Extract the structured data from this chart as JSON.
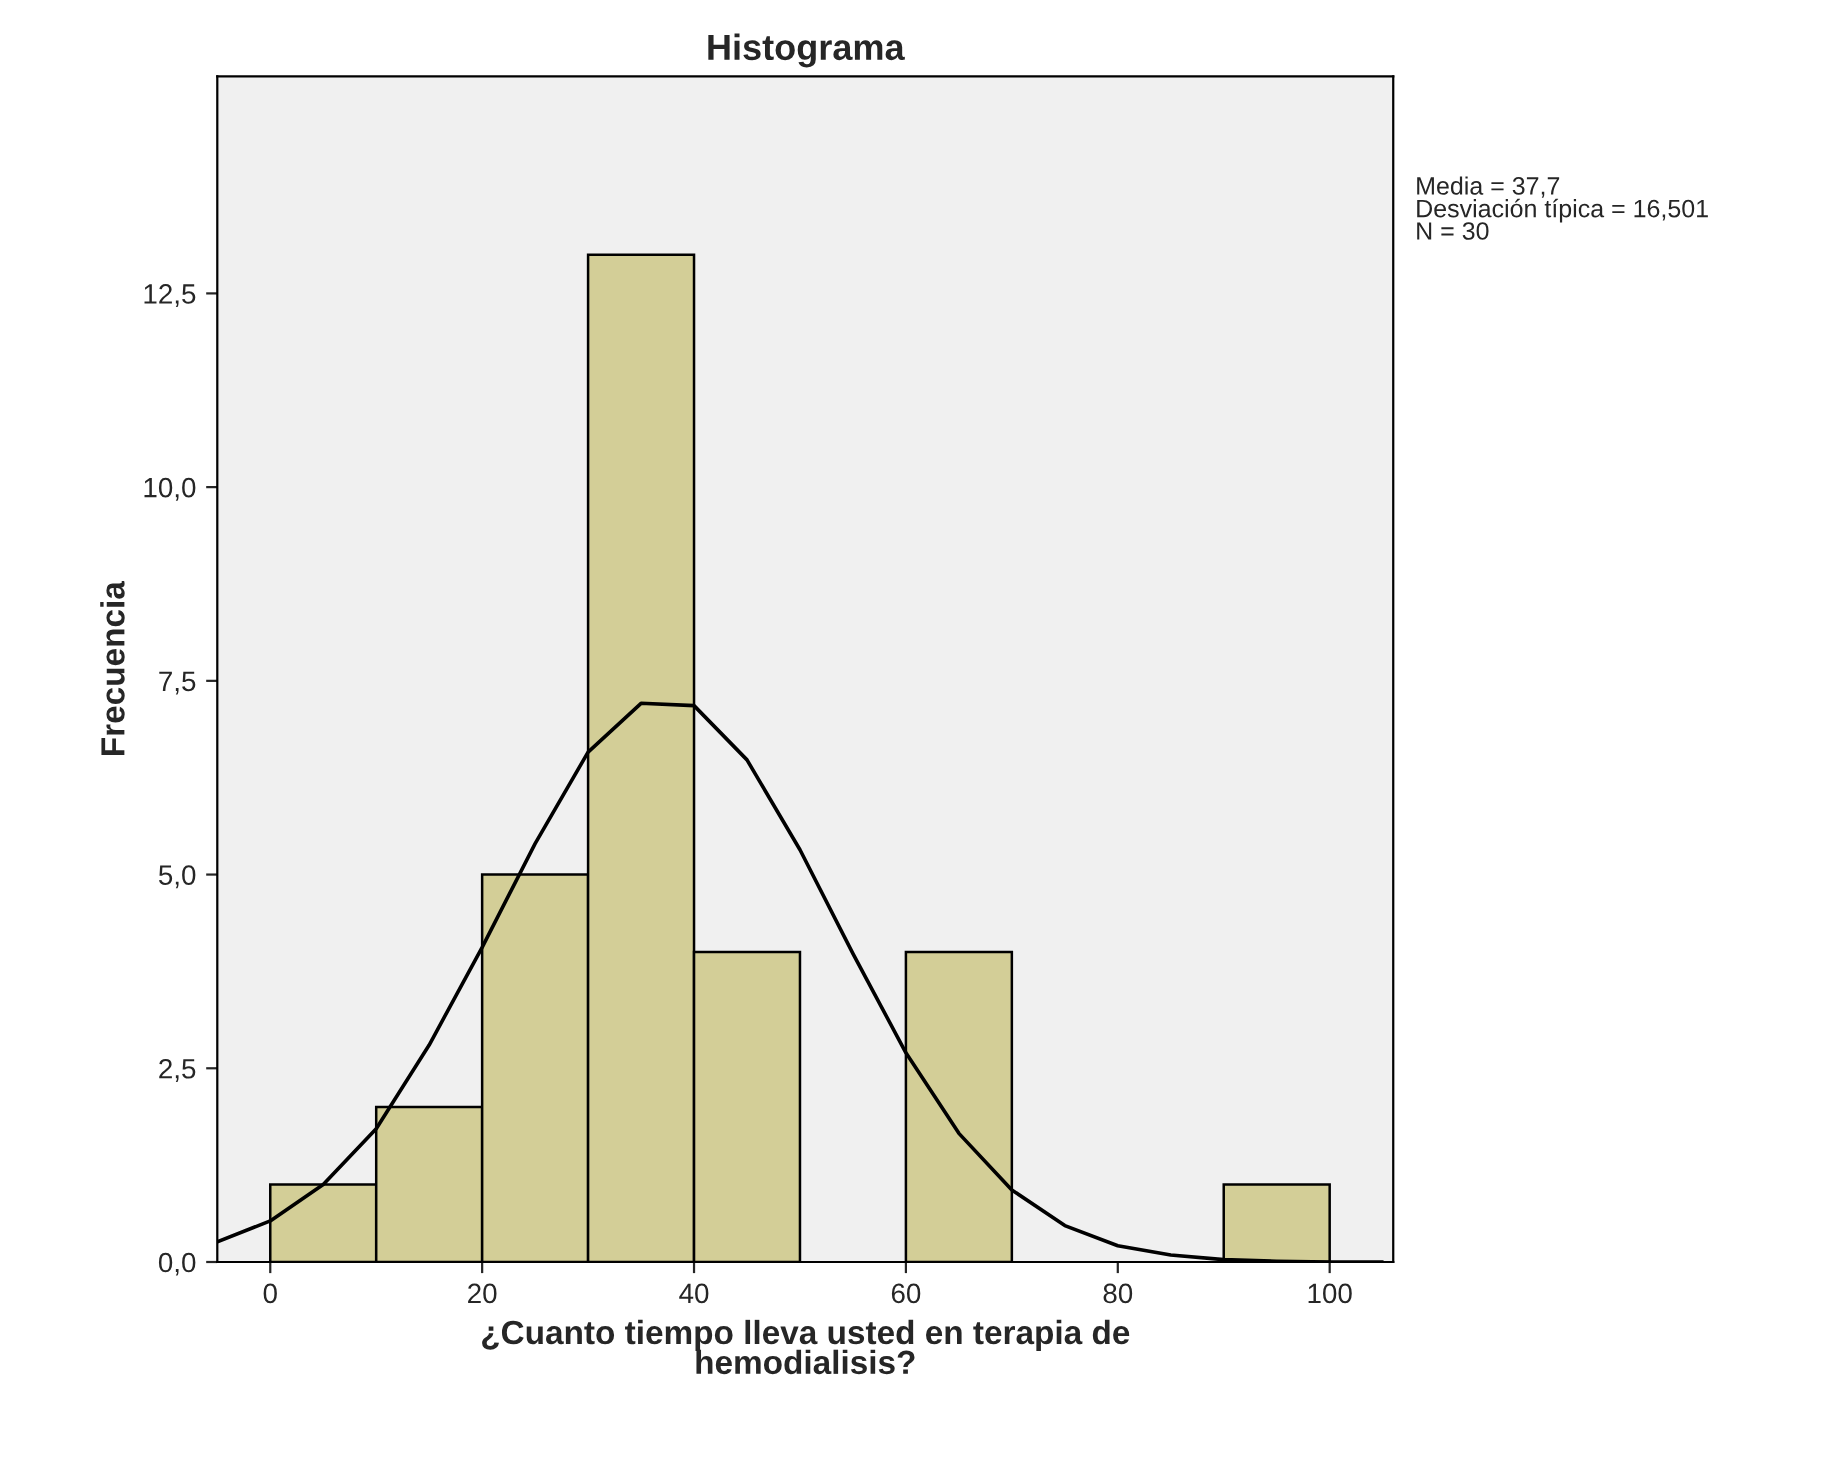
{
  "chart_data": {
    "type": "histogram",
    "title": "Histograma",
    "xlabel": "¿Cuanto tiempo lleva usted en terapia de\nhemodialisis?",
    "ylabel": "Frecuencia",
    "bins": [
      0,
      10,
      20,
      30,
      40,
      50,
      60,
      70,
      80,
      90,
      100
    ],
    "values": [
      1,
      2,
      5,
      13,
      4,
      0,
      4,
      0,
      0,
      1
    ],
    "color": "#d3ce97",
    "series": [
      {
        "type": "line",
        "color": "#000000",
        "x": [
          -5,
          0,
          5,
          10,
          15,
          20,
          25,
          30,
          35,
          40,
          45,
          50,
          55,
          60,
          65,
          70,
          75,
          80,
          85,
          90,
          95,
          100,
          105
        ],
        "values": [
          0.26,
          0.53,
          1.0,
          1.72,
          2.8,
          4.06,
          5.4,
          6.58,
          7.21,
          7.18,
          6.48,
          5.32,
          3.98,
          2.7,
          1.66,
          0.93,
          0.47,
          0.21,
          0.09,
          0.03,
          0.01,
          0.0,
          0.0
        ]
      }
    ],
    "xlim": [
      -5,
      106
    ],
    "ylim": [
      0,
      15.3
    ],
    "xticks": [
      0,
      20,
      40,
      60,
      80,
      100
    ],
    "yticks": [
      {
        "value": 0,
        "label": "0,0"
      },
      {
        "value": 2.5,
        "label": "2,5"
      },
      {
        "value": 5,
        "label": "5,0"
      },
      {
        "value": 7.5,
        "label": "7,5"
      },
      {
        "value": 10,
        "label": "10,0"
      },
      {
        "value": 12.5,
        "label": "12,5"
      }
    ],
    "annotations": [
      "Media = 37,7",
      "Desviación típica = 16,501",
      "N = 30"
    ],
    "grid": false,
    "legend": false
  }
}
